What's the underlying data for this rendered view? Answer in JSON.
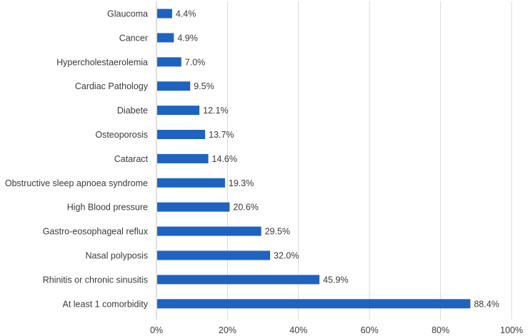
{
  "chart_data": {
    "type": "bar",
    "orientation": "horizontal",
    "title": "",
    "xlabel": "",
    "ylabel": "",
    "xlim": [
      0,
      100
    ],
    "grid": true,
    "bar_color": "#1f63c0",
    "categories": [
      "Glaucoma",
      "Cancer",
      "Hypercholestaerolemia",
      "Cardiac Pathology",
      "Diabete",
      "Osteoporosis",
      "Cataract",
      "Obstructive sleep apnoea syndrome",
      "High Blood pressure",
      "Gastro-eosophageal reflux",
      "Nasal polyposis",
      "Rhinitis or chronic sinusitis",
      "At least 1 comorbidity"
    ],
    "values": [
      4.4,
      4.9,
      7.0,
      9.5,
      12.1,
      13.7,
      14.6,
      19.3,
      20.6,
      29.5,
      32.0,
      45.9,
      88.4
    ],
    "value_labels": [
      "4.4%",
      "4.9%",
      "7.0%",
      "9.5%",
      "12.1%",
      "13.7%",
      "14.6%",
      "19.3%",
      "20.6%",
      "29.5%",
      "32.0%",
      "45.9%",
      "88.4%"
    ],
    "ticks": [
      0,
      20,
      40,
      60,
      80,
      100
    ],
    "tick_labels": [
      "0%",
      "20%",
      "40%",
      "60%",
      "80%",
      "100%"
    ]
  }
}
